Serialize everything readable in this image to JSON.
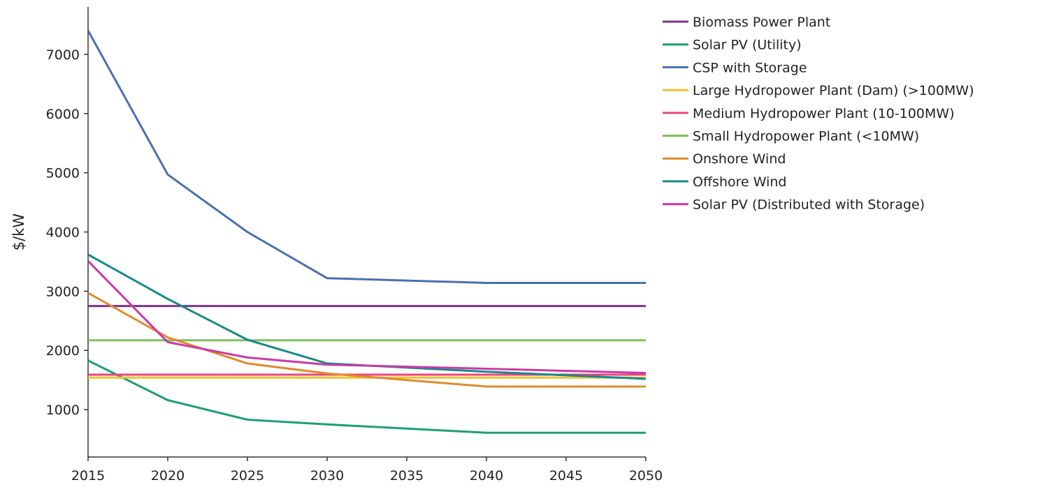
{
  "chart_data": {
    "type": "line",
    "title": "",
    "xlabel": "",
    "ylabel": "$/kW",
    "x": [
      2015,
      2020,
      2025,
      2030,
      2040,
      2050
    ],
    "xticks": [
      2015,
      2020,
      2025,
      2030,
      2035,
      2040,
      2045,
      2050
    ],
    "xlim": [
      2015,
      2050
    ],
    "yticks": [
      1000,
      2000,
      3000,
      4000,
      5000,
      6000,
      7000
    ],
    "ylim": [
      200,
      7800
    ],
    "grid": false,
    "legend_position": "right",
    "series": [
      {
        "name": "Biomass Power Plant",
        "color": "#7b3294",
        "values": [
          2750,
          2750,
          2750,
          2750,
          2750,
          2750
        ]
      },
      {
        "name": "Solar PV (Utility)",
        "color": "#1b9e77",
        "values": [
          1830,
          1160,
          830,
          750,
          610,
          610
        ]
      },
      {
        "name": "CSP with Storage",
        "color": "#4a6fb0",
        "values": [
          7400,
          4970,
          4000,
          3220,
          3140,
          3140
        ]
      },
      {
        "name": "Large Hydropower Plant (Dam) (>100MW)",
        "color": "#f2c12e",
        "values": [
          1540,
          1540,
          1540,
          1540,
          1540,
          1540
        ]
      },
      {
        "name": "Medium Hydropower Plant (10-100MW)",
        "color": "#e8467c",
        "values": [
          1590,
          1590,
          1590,
          1590,
          1590,
          1590
        ]
      },
      {
        "name": "Small Hydropower Plant (<10MW)",
        "color": "#7fc15c",
        "values": [
          2170,
          2170,
          2170,
          2170,
          2170,
          2170
        ]
      },
      {
        "name": "Onshore Wind",
        "color": "#e08a2b",
        "values": [
          2970,
          2220,
          1780,
          1610,
          1390,
          1390
        ]
      },
      {
        "name": "Offshore Wind",
        "color": "#178a8a",
        "values": [
          3620,
          2870,
          2180,
          1780,
          1640,
          1520
        ]
      },
      {
        "name": "Solar PV (Distributed with Storage)",
        "color": "#c93aa6",
        "values": [
          3510,
          2140,
          1880,
          1760,
          1690,
          1620
        ]
      }
    ]
  }
}
